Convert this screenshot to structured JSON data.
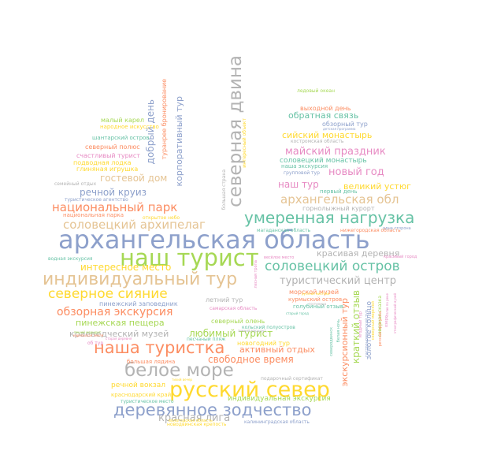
{
  "colors": {
    "blue": "#8da0cb",
    "green": "#a6d854",
    "orange": "#fc8d62",
    "yellow": "#ffd92f",
    "teal": "#66c2a5",
    "tan": "#e5c494",
    "pink": "#e78ac3",
    "gray": "#b3b3b3"
  },
  "words": [
    {
      "text": "архангельская область",
      "color": "blue"
    },
    {
      "text": "наш турист",
      "color": "green"
    },
    {
      "text": "русский север",
      "color": "yellow"
    },
    {
      "text": "индивидуальный тур",
      "color": "tan"
    },
    {
      "text": "северная двина",
      "color": "gray"
    },
    {
      "text": "белое море",
      "color": "gray"
    },
    {
      "text": "деревянное зодчество",
      "color": "blue"
    },
    {
      "text": "наша туристка",
      "color": "orange"
    },
    {
      "text": "умеренная нагрузка",
      "color": "teal"
    },
    {
      "text": "соловецкий остров",
      "color": "teal"
    },
    {
      "text": "северное сияние",
      "color": "yellow"
    },
    {
      "text": "архангельская обл",
      "color": "tan"
    },
    {
      "text": "соловецкий архипелаг",
      "color": "tan"
    },
    {
      "text": "национальный парк",
      "color": "orange"
    },
    {
      "text": "туристический центр",
      "color": "gray"
    },
    {
      "text": "обзорная экскурсия",
      "color": "orange"
    },
    {
      "text": "новый год",
      "color": "pink"
    },
    {
      "text": "майский праздник",
      "color": "pink"
    },
    {
      "text": "свободное время",
      "color": "orange"
    },
    {
      "text": "красная лига",
      "color": "gray"
    },
    {
      "text": "интересное место",
      "color": "yellow"
    },
    {
      "text": "гостевой дом",
      "color": "tan"
    },
    {
      "text": "речной круиз",
      "color": "blue"
    },
    {
      "text": "добрый день",
      "color": "blue"
    },
    {
      "text": "корпоративный тур",
      "color": "blue"
    },
    {
      "text": "обратная связь",
      "color": "teal"
    },
    {
      "text": "сийский монастырь",
      "color": "yellow"
    },
    {
      "text": "великий устюг",
      "color": "yellow"
    },
    {
      "text": "наш тур",
      "color": "pink"
    },
    {
      "text": "красивая деревня",
      "color": "gray"
    },
    {
      "text": "пинежская пещера",
      "color": "green"
    },
    {
      "text": "краеведческий музей",
      "color": "gray"
    },
    {
      "text": "любимый турист",
      "color": "green"
    },
    {
      "text": "экскурсионный тур",
      "color": "orange"
    },
    {
      "text": "краткий отзыв",
      "color": "green"
    },
    {
      "text": "золотое кольцо",
      "color": "blue"
    },
    {
      "text": "активный отдых",
      "color": "orange"
    },
    {
      "text": "индивидуальная экскурсия",
      "color": "green"
    },
    {
      "text": "речной вокзал",
      "color": "yellow"
    },
    {
      "text": "соловецкий монастырь",
      "color": "teal"
    },
    {
      "text": "туранрее бронирование",
      "color": "orange"
    },
    {
      "text": "северный полюс",
      "color": "orange"
    },
    {
      "text": "счастливый турист",
      "color": "pink"
    },
    {
      "text": "подводная лодка",
      "color": "yellow"
    },
    {
      "text": "глиняная игрушка",
      "color": "yellow"
    },
    {
      "text": "малый карел",
      "color": "green"
    },
    {
      "text": "народное искусство",
      "color": "yellow"
    },
    {
      "text": "шантарский остров",
      "color": "teal"
    },
    {
      "text": "пинежский заповедник",
      "color": "blue"
    },
    {
      "text": "летний тур",
      "color": "gray"
    },
    {
      "text": "северный олень",
      "color": "green"
    },
    {
      "text": "новогодний тур",
      "color": "yellow"
    },
    {
      "text": "песчаный пляж",
      "color": "teal"
    },
    {
      "text": "большая лядина",
      "color": "orange"
    },
    {
      "text": "краснодарский край",
      "color": "yellow"
    },
    {
      "text": "туристическое место",
      "color": "teal"
    },
    {
      "text": "новодвинская крепость",
      "color": "yellow"
    },
    {
      "text": "калининградская область",
      "color": "blue"
    },
    {
      "text": "морской музей",
      "color": "orange"
    },
    {
      "text": "курмыский остров",
      "color": "orange"
    },
    {
      "text": "голубиный отзыв",
      "color": "teal"
    },
    {
      "text": "горнолыжный курорт",
      "color": "gray"
    },
    {
      "text": "первый день",
      "color": "teal"
    },
    {
      "text": "нижегородская область",
      "color": "orange"
    },
    {
      "text": "магаданская область",
      "color": "teal"
    },
    {
      "text": "выходной день",
      "color": "orange"
    },
    {
      "text": "обзорный тур",
      "color": "blue"
    },
    {
      "text": "ледовый океан",
      "color": "green"
    },
    {
      "text": "костромская область",
      "color": "gray"
    },
    {
      "text": "наша экскурсия",
      "color": "teal"
    },
    {
      "text": "групповой тур",
      "color": "blue"
    },
    {
      "text": "водная экскурсия",
      "color": "teal"
    },
    {
      "text": "семейный отдых",
      "color": "gray"
    },
    {
      "text": "национальная парка",
      "color": "orange"
    },
    {
      "text": "туристическое агентство",
      "color": "blue"
    },
    {
      "text": "открытое небо",
      "color": "yellow"
    },
    {
      "text": "самарская область",
      "color": "pink"
    },
    {
      "text": "кольский полуостров",
      "color": "teal"
    },
    {
      "text": "подарочный сертификат",
      "color": "gray"
    },
    {
      "text": "большая страна",
      "color": "gray"
    },
    {
      "text": "интересный объект",
      "color": "yellow"
    },
    {
      "text": "одна сторона",
      "color": "blue"
    },
    {
      "text": "красивый город",
      "color": "pink"
    },
    {
      "text": "детская программа",
      "color": "blue"
    },
    {
      "text": "весёлое место",
      "color": "pink"
    },
    {
      "text": "русская мистика",
      "color": "yellow"
    },
    {
      "text": "пеший маршрут",
      "color": "green"
    },
    {
      "text": "карельская земля",
      "color": "orange"
    },
    {
      "text": "об тур",
      "color": "pink"
    },
    {
      "text": "белая ночь",
      "color": "teal"
    },
    {
      "text": "северодвинск",
      "color": "teal"
    },
    {
      "text": "гостиница",
      "color": "gray"
    },
    {
      "text": "ягодный тур",
      "color": "pink"
    },
    {
      "text": "северная сказка",
      "color": "green"
    },
    {
      "text": "старый город",
      "color": "teal"
    },
    {
      "text": "северный морской",
      "color": "yellow"
    },
    {
      "text": "старая деревня",
      "color": "pink"
    },
    {
      "text": "сплав по реке",
      "color": "pink"
    },
    {
      "text": "этнографический музей",
      "color": "pink"
    },
    {
      "text": "тихий вечер",
      "color": "yellow"
    },
    {
      "text": "зимний маршрут",
      "color": "gray"
    },
    {
      "text": "лесная тропа",
      "color": "pink"
    },
    {
      "text": "речная прогулка",
      "color": "orange"
    },
    {
      "text": "гастрономический тур",
      "color": "blue"
    },
    {
      "text": "озеро",
      "color": "pink"
    },
    {
      "text": "вологодская область",
      "color": "yellow"
    }
  ]
}
